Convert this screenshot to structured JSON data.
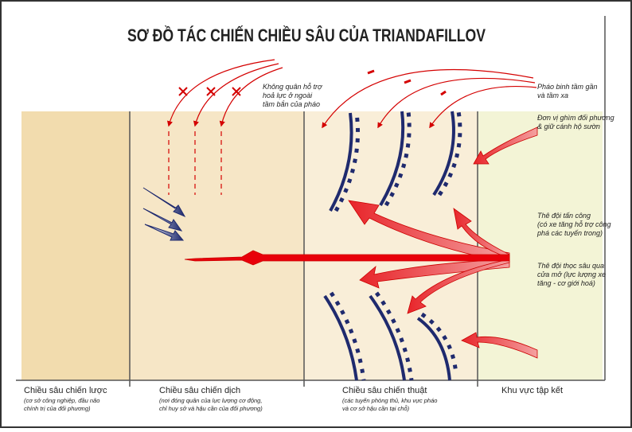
{
  "title": "SƠ ĐỒ TÁC CHIẾN CHIỀU SÂU CỦA TRIANDAFILLOV",
  "annotations": [
    {
      "lines": [
        "Không quân hỗ trợ",
        "hoả lực ở ngoài",
        "tầm bắn của pháo"
      ]
    },
    {
      "lines": [
        "Pháo binh tầm gần",
        "và tầm xa"
      ]
    },
    {
      "lines": [
        "Đơn vị ghìm đối phương",
        "& giữ cánh hộ sườn"
      ]
    },
    {
      "lines": [
        "Thê đội tấn công",
        "(có xe tăng hỗ trợ công",
        "phá các tuyến trong)"
      ]
    },
    {
      "lines": [
        "Thê đội thọc sâu qua",
        "cửa mở (lực lượng xe",
        "tăng - cơ giới hoá)"
      ]
    }
  ],
  "zones": [
    {
      "label": "Chiều sâu chiến lược",
      "notes": [
        "(cơ sở công nghiệp, đầu não",
        "chính trị của đối phương)"
      ]
    },
    {
      "label": "Chiều sâu chiến dịch",
      "notes": [
        "(nơi đóng quân của lực lượng cơ động,",
        "chỉ huy sở và hậu cần của đối phương)"
      ]
    },
    {
      "label": "Chiều sâu chiến thuật",
      "notes": [
        "(các tuyến phòng thủ, khu vực pháo",
        "và cơ sở hậu cần tại chỗ)"
      ]
    },
    {
      "label": "Khu vực tập kết",
      "notes": []
    }
  ]
}
